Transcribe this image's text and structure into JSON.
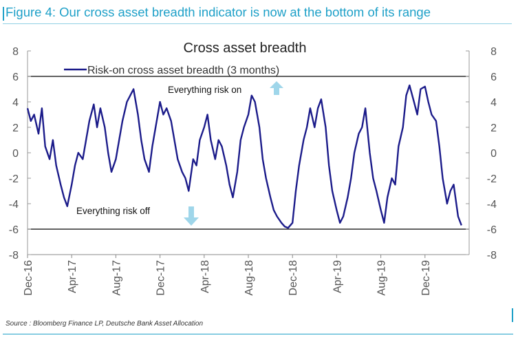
{
  "figure_title": "Figure 4: Our cross asset breadth indicator is now at the bottom of its range",
  "source": "Source : Bloomberg Finance LP, Deutsche Bank Asset Allocation",
  "colors": {
    "series": "#1b1b8a",
    "accent": "#1ea0c8",
    "arrow": "#9fd6ea"
  },
  "chart_data": {
    "type": "line",
    "title": "Cross asset breadth",
    "legend": "Risk-on cross asset breadth (3 months)",
    "ylim": [
      -8,
      8
    ],
    "y_ticks": [
      "8",
      "6",
      "4",
      "2",
      "0",
      "-2",
      "-4",
      "-6",
      "-8"
    ],
    "y_tick_values": [
      8,
      6,
      4,
      2,
      0,
      -2,
      -4,
      -6,
      -8
    ],
    "x_tick_labels": [
      "Dec-16",
      "Apr-17",
      "Aug-17",
      "Dec-17",
      "Apr-18",
      "Aug-18",
      "Dec-18",
      "Apr-19",
      "Aug-19",
      "Dec-19"
    ],
    "xlim_months": [
      0,
      40
    ],
    "reference_lines": [
      6,
      -6
    ],
    "annotations": {
      "risk_on": "Everything risk on",
      "risk_off": "Everything risk off"
    },
    "series": [
      {
        "name": "Risk-on cross asset breadth (3 months)",
        "x": [
          0,
          0.3,
          0.6,
          1.0,
          1.3,
          1.6,
          2.0,
          2.3,
          2.6,
          3.0,
          3.3,
          3.6,
          4.0,
          4.3,
          4.6,
          5.0,
          5.3,
          5.6,
          6.0,
          6.3,
          6.6,
          7.0,
          7.3,
          7.6,
          8.0,
          8.3,
          8.6,
          9.0,
          9.3,
          9.6,
          10.0,
          10.3,
          10.6,
          11.0,
          11.3,
          11.6,
          12.0,
          12.3,
          12.6,
          13.0,
          13.3,
          13.6,
          14.0,
          14.3,
          14.6,
          15.0,
          15.3,
          15.6,
          16.0,
          16.3,
          16.6,
          17.0,
          17.3,
          17.6,
          18.0,
          18.3,
          18.6,
          19.0,
          19.3,
          19.6,
          20.0,
          20.3,
          20.6,
          21.0,
          21.3,
          21.6,
          22.0,
          22.3,
          22.6,
          23.0,
          23.3,
          23.6,
          24.0,
          24.3,
          24.6,
          25.0,
          25.3,
          25.6,
          26.0,
          26.3,
          26.6,
          27.0,
          27.3,
          27.6,
          28.0,
          28.3,
          28.6,
          29.0,
          29.3,
          29.6,
          30.0,
          30.3,
          30.6,
          31.0,
          31.3,
          31.6,
          32.0,
          32.3,
          32.6,
          33.0,
          33.3,
          33.6,
          34.0,
          34.3,
          34.6,
          35.0,
          35.3,
          35.6,
          36.0,
          36.3,
          36.6,
          37.0,
          37.3,
          37.6,
          38.0,
          38.3,
          38.6,
          39.0,
          39.3
        ],
        "values": [
          3.5,
          2.5,
          3.0,
          1.5,
          3.5,
          0.5,
          -0.5,
          1.0,
          -1.0,
          -2.5,
          -3.5,
          -4.2,
          -2.5,
          -1.0,
          0.0,
          -0.5,
          1.0,
          2.5,
          3.8,
          2.0,
          3.5,
          2.0,
          0.0,
          -1.5,
          -0.5,
          1.0,
          2.5,
          4.0,
          4.5,
          5.0,
          3.0,
          1.0,
          -0.5,
          -1.5,
          0.5,
          2.0,
          4.0,
          3.0,
          3.5,
          2.5,
          1.0,
          -0.5,
          -1.5,
          -2.0,
          -3.0,
          -0.5,
          -1.0,
          1.0,
          2.0,
          3.0,
          1.0,
          -0.5,
          1.0,
          0.5,
          -1.0,
          -2.5,
          -3.5,
          -1.5,
          1.0,
          2.0,
          3.0,
          4.5,
          4.0,
          2.0,
          -0.5,
          -2.0,
          -3.5,
          -4.5,
          -5.0,
          -5.5,
          -5.8,
          -5.9,
          -5.5,
          -3.0,
          -1.0,
          1.0,
          2.0,
          3.5,
          2.0,
          3.5,
          4.2,
          2.0,
          -1.0,
          -3.0,
          -4.5,
          -5.5,
          -5.0,
          -3.5,
          -2.0,
          0.0,
          1.5,
          2.0,
          3.5,
          0.0,
          -2.0,
          -3.0,
          -4.5,
          -5.5,
          -3.5,
          -2.0,
          -2.5,
          0.5,
          2.0,
          4.5,
          5.3,
          4.0,
          3.0,
          5.0,
          5.2,
          4.0,
          3.0,
          2.5,
          0.5,
          -2.0,
          -4.0,
          -3.0,
          -2.5,
          -5.0,
          -5.7
        ]
      }
    ]
  }
}
